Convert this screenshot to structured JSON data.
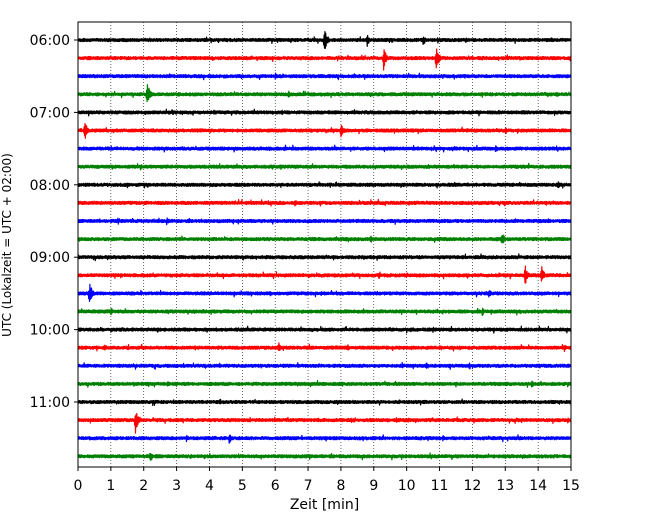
{
  "chart_data": {
    "type": "line",
    "title": "",
    "xlabel": "Zeit  [min]",
    "ylabel": "UTC (Lokalzeit = UTC + 02:00)",
    "xlim": [
      0,
      15
    ],
    "xticks": [
      0,
      1,
      2,
      3,
      4,
      5,
      6,
      7,
      8,
      9,
      10,
      11,
      12,
      13,
      14,
      15
    ],
    "grid": "vertical dotted",
    "hour_labels": [
      {
        "label": "06:00",
        "start": "06:00"
      },
      {
        "label": "07:00",
        "start": "07:00"
      },
      {
        "label": "08:00",
        "start": "08:00"
      },
      {
        "label": "09:00",
        "start": "09:00"
      },
      {
        "label": "10:00",
        "start": "10:00"
      },
      {
        "label": "11:00",
        "start": "11:00"
      }
    ],
    "trace_colors": [
      "#000000",
      "#ff0000",
      "#0000ff",
      "#008000"
    ],
    "traces": [
      {
        "start": "06:00",
        "color": "#000000",
        "events": [
          {
            "t": 7.5,
            "amp": 1.0
          },
          {
            "t": 8.8,
            "amp": 0.45
          },
          {
            "t": 10.5,
            "amp": 0.4
          },
          {
            "t": 11.8,
            "amp": 0.2
          }
        ]
      },
      {
        "start": "06:15",
        "color": "#ff0000",
        "events": [
          {
            "t": 9.3,
            "amp": 0.9
          },
          {
            "t": 10.9,
            "amp": 1.0
          },
          {
            "t": 4.8,
            "amp": 0.2
          },
          {
            "t": 12.3,
            "amp": 0.2
          }
        ]
      },
      {
        "start": "06:30",
        "color": "#0000ff",
        "events": [
          {
            "t": 6.0,
            "amp": 0.25
          },
          {
            "t": 7.9,
            "amp": 0.2
          }
        ]
      },
      {
        "start": "06:45",
        "color": "#008000",
        "events": [
          {
            "t": 2.1,
            "amp": 1.0
          },
          {
            "t": 6.4,
            "amp": 0.25
          }
        ]
      },
      {
        "start": "07:00",
        "color": "#000000",
        "events": [
          {
            "t": 6.2,
            "amp": 0.2
          }
        ]
      },
      {
        "start": "07:15",
        "color": "#ff0000",
        "events": [
          {
            "t": 0.2,
            "amp": 0.85
          },
          {
            "t": 8.0,
            "amp": 0.6
          },
          {
            "t": 13.0,
            "amp": 0.3
          }
        ]
      },
      {
        "start": "07:30",
        "color": "#0000ff",
        "events": [
          {
            "t": 12.7,
            "amp": 0.25
          }
        ]
      },
      {
        "start": "07:45",
        "color": "#008000",
        "events": [
          {
            "t": 1.9,
            "amp": 0.25
          },
          {
            "t": 4.1,
            "amp": 0.15
          },
          {
            "t": 10.0,
            "amp": 0.15
          }
        ]
      },
      {
        "start": "08:00",
        "color": "#000000",
        "events": [
          {
            "t": 1.5,
            "amp": 0.25
          },
          {
            "t": 10.0,
            "amp": 0.15
          },
          {
            "t": 14.6,
            "amp": 0.3
          }
        ]
      },
      {
        "start": "08:15",
        "color": "#ff0000",
        "events": [
          {
            "t": 6.6,
            "amp": 0.25
          },
          {
            "t": 9.8,
            "amp": 0.15
          }
        ]
      },
      {
        "start": "08:30",
        "color": "#0000ff",
        "events": [
          {
            "t": 2.7,
            "amp": 0.3
          },
          {
            "t": 14.3,
            "amp": 0.2
          }
        ]
      },
      {
        "start": "08:45",
        "color": "#008000",
        "events": [
          {
            "t": 8.9,
            "amp": 0.3
          },
          {
            "t": 12.9,
            "amp": 0.55
          }
        ]
      },
      {
        "start": "09:00",
        "color": "#000000",
        "events": [
          {
            "t": 2.9,
            "amp": 0.15
          },
          {
            "t": 13.6,
            "amp": 0.15
          }
        ]
      },
      {
        "start": "09:15",
        "color": "#ff0000",
        "events": [
          {
            "t": 1.3,
            "amp": 0.2
          },
          {
            "t": 10.0,
            "amp": 0.2
          },
          {
            "t": 13.6,
            "amp": 0.8
          },
          {
            "t": 14.1,
            "amp": 0.75
          }
        ]
      },
      {
        "start": "09:30",
        "color": "#0000ff",
        "events": [
          {
            "t": 0.35,
            "amp": 0.9
          },
          {
            "t": 7.4,
            "amp": 0.2
          },
          {
            "t": 12.5,
            "amp": 0.35
          }
        ]
      },
      {
        "start": "09:45",
        "color": "#008000",
        "events": [
          {
            "t": 1.0,
            "amp": 0.3
          },
          {
            "t": 12.3,
            "amp": 0.3
          }
        ]
      },
      {
        "start": "10:00",
        "color": "#000000",
        "events": [
          {
            "t": 1.0,
            "amp": 0.2
          },
          {
            "t": 10.8,
            "amp": 0.2
          }
        ]
      },
      {
        "start": "10:15",
        "color": "#ff0000",
        "events": [
          {
            "t": 0.8,
            "amp": 0.3
          },
          {
            "t": 6.1,
            "amp": 0.4
          },
          {
            "t": 8.2,
            "amp": 0.3
          },
          {
            "t": 14.8,
            "amp": 0.25
          }
        ]
      },
      {
        "start": "10:30",
        "color": "#0000ff",
        "events": [
          {
            "t": 10.6,
            "amp": 0.35
          },
          {
            "t": 11.9,
            "amp": 0.2
          }
        ]
      },
      {
        "start": "10:45",
        "color": "#008000",
        "events": [
          {
            "t": 3.0,
            "amp": 0.2
          },
          {
            "t": 13.8,
            "amp": 0.3
          },
          {
            "t": 14.9,
            "amp": 0.2
          }
        ]
      },
      {
        "start": "11:00",
        "color": "#000000",
        "events": [
          {
            "t": 4.3,
            "amp": 0.2
          },
          {
            "t": 11.7,
            "amp": 0.15
          }
        ]
      },
      {
        "start": "11:15",
        "color": "#ff0000",
        "events": [
          {
            "t": 1.75,
            "amp": 0.9
          },
          {
            "t": 8.9,
            "amp": 0.2
          },
          {
            "t": 14.9,
            "amp": 0.2
          }
        ]
      },
      {
        "start": "11:30",
        "color": "#0000ff",
        "events": [
          {
            "t": 3.3,
            "amp": 0.3
          },
          {
            "t": 4.6,
            "amp": 0.4
          },
          {
            "t": 11.1,
            "amp": 0.2
          }
        ]
      },
      {
        "start": "11:45",
        "color": "#008000",
        "events": [
          {
            "t": 2.2,
            "amp": 0.5
          },
          {
            "t": 4.8,
            "amp": 0.15
          }
        ]
      }
    ]
  }
}
